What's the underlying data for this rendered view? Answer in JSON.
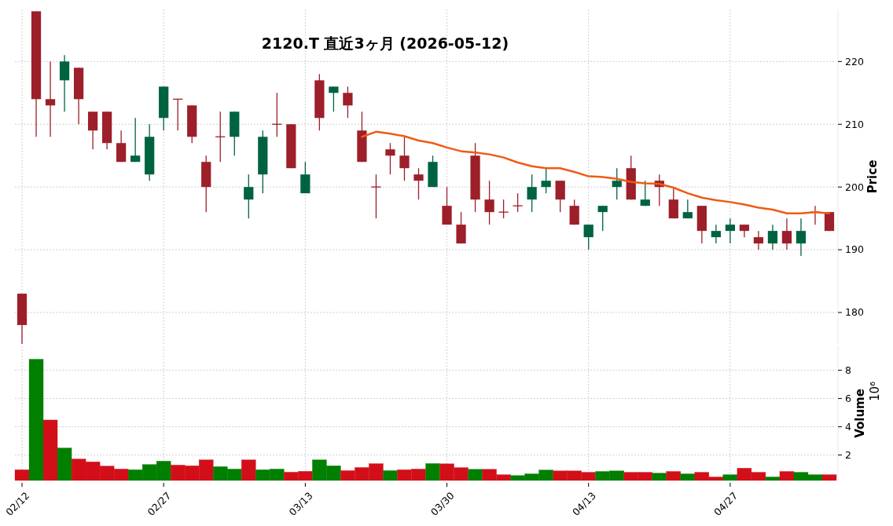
{
  "chart_data": [
    {
      "type": "candlestick",
      "title": "2120.T 直近3ヶ月 (2026-05-12)",
      "ylabel": "Price",
      "categories": [
        null,
        null,
        null,
        null,
        null,
        null,
        null,
        null,
        null,
        null,
        null,
        null,
        null,
        null,
        null,
        null,
        null,
        null,
        null,
        null,
        null,
        null,
        null,
        null,
        null,
        null,
        null,
        null,
        null,
        null,
        null,
        null,
        null,
        null,
        null,
        null,
        null,
        null,
        null,
        null,
        null,
        null,
        null,
        null,
        null,
        null,
        null,
        null,
        null,
        null,
        null,
        null,
        null,
        null,
        null,
        null,
        null,
        null
      ],
      "ohlc": [
        [
          183,
          183,
          175,
          178
        ],
        [
          228,
          228,
          208,
          214
        ],
        [
          214,
          220,
          208,
          213
        ],
        [
          217,
          221,
          212,
          220
        ],
        [
          219,
          219,
          210,
          214
        ],
        [
          212,
          212,
          206,
          209
        ],
        [
          212,
          212,
          206,
          207
        ],
        [
          207,
          209,
          204,
          204
        ],
        [
          204,
          211,
          204,
          205
        ],
        [
          202,
          210,
          201,
          208
        ],
        [
          211,
          216,
          209,
          216
        ],
        [
          214,
          214,
          209,
          214
        ],
        [
          213,
          213,
          207,
          208
        ],
        [
          204,
          205,
          196,
          200
        ],
        [
          208,
          212,
          204,
          208
        ],
        [
          208,
          212,
          205,
          212
        ],
        [
          198,
          202,
          195,
          200
        ],
        [
          202,
          209,
          199,
          208
        ],
        [
          210,
          215,
          208,
          210
        ],
        [
          210,
          210,
          203,
          203
        ],
        [
          199,
          204,
          199,
          202
        ],
        [
          217,
          218,
          209,
          211
        ],
        [
          215,
          216,
          212,
          216
        ],
        [
          215,
          216,
          211,
          213
        ],
        [
          209,
          212,
          204,
          204
        ],
        [
          200,
          202,
          195,
          200
        ],
        [
          206,
          207,
          202,
          205
        ],
        [
          205,
          208,
          201,
          203
        ],
        [
          202,
          203,
          198,
          201
        ],
        [
          200,
          205,
          200,
          204
        ],
        [
          197,
          200,
          194,
          194
        ],
        [
          194,
          196,
          191,
          191
        ],
        [
          205,
          207,
          196,
          198
        ],
        [
          198,
          201,
          194,
          196
        ],
        [
          196,
          198,
          195,
          196
        ],
        [
          197,
          199,
          196,
          197
        ],
        [
          198,
          202,
          196,
          200
        ],
        [
          200,
          203,
          199,
          201
        ],
        [
          201,
          201,
          196,
          198
        ],
        [
          197,
          198,
          194,
          194
        ],
        [
          192,
          194,
          190,
          194
        ],
        [
          196,
          197,
          193,
          197
        ],
        [
          200,
          203,
          198,
          201
        ],
        [
          203,
          205,
          198,
          198
        ],
        [
          197,
          201,
          197,
          198
        ],
        [
          201,
          202,
          197,
          200
        ],
        [
          198,
          200,
          195,
          195
        ],
        [
          195,
          198,
          195,
          196
        ],
        [
          197,
          197,
          191,
          193
        ],
        [
          192,
          194,
          191,
          193
        ],
        [
          193,
          195,
          191,
          194
        ],
        [
          194,
          194,
          192,
          193
        ],
        [
          192,
          193,
          190,
          191
        ],
        [
          191,
          194,
          190,
          193
        ],
        [
          193,
          195,
          190,
          191
        ],
        [
          191,
          195,
          189,
          193
        ],
        [
          196,
          197,
          194,
          196
        ],
        [
          196,
          196,
          193,
          193
        ]
      ],
      "colors": [
        "#9c1f2a",
        "#9c1f2a",
        "#9c1f2a",
        "#006340",
        "#9c1f2a",
        "#9c1f2a",
        "#9c1f2a",
        "#9c1f2a",
        "#006340",
        "#006340",
        "#006340",
        "#9c1f2a",
        "#9c1f2a",
        "#9c1f2a",
        "#9c1f2a",
        "#006340",
        "#006340",
        "#006340",
        "#9c1f2a",
        "#9c1f2a",
        "#006340",
        "#9c1f2a",
        "#006340",
        "#9c1f2a",
        "#9c1f2a",
        "#9c1f2a",
        "#9c1f2a",
        "#9c1f2a",
        "#9c1f2a",
        "#006340",
        "#9c1f2a",
        "#9c1f2a",
        "#9c1f2a",
        "#9c1f2a",
        "#9c1f2a",
        "#9c1f2a",
        "#006340",
        "#006340",
        "#9c1f2a",
        "#9c1f2a",
        "#006340",
        "#006340",
        "#006340",
        "#9c1f2a",
        "#006340",
        "#9c1f2a",
        "#9c1f2a",
        "#006340",
        "#9c1f2a",
        "#006340",
        "#006340",
        "#9c1f2a",
        "#9c1f2a",
        "#006340",
        "#9c1f2a",
        "#006340",
        "#9c1f2a",
        "#9c1f2a"
      ],
      "series": [
        {
          "type": "line",
          "color": "#f05a14",
          "values": [
            null,
            null,
            null,
            null,
            null,
            null,
            null,
            null,
            null,
            null,
            null,
            null,
            null,
            null,
            null,
            null,
            null,
            null,
            null,
            null,
            null,
            null,
            null,
            null,
            208.0,
            208.8,
            208.5,
            208.1,
            207.4,
            207.0,
            206.3,
            205.7,
            205.5,
            205.2,
            204.7,
            203.9,
            203.3,
            203.0,
            203.0,
            202.4,
            201.7,
            201.6,
            201.3,
            200.8,
            200.6,
            200.5,
            199.9,
            199.0,
            198.3,
            197.9,
            197.6,
            197.2,
            196.7,
            196.4,
            195.8,
            195.8,
            196.0,
            195.8
          ]
        }
      ],
      "ylim": [
        175,
        228.3
      ],
      "yticks": [
        180,
        190,
        200,
        210,
        220
      ],
      "grid": true,
      "tick_labels": "y"
    },
    {
      "type": "bar",
      "ylabel": "Volume",
      "annotations": [
        "10⁶"
      ],
      "categories": [
        "02/12",
        null,
        null,
        null,
        null,
        null,
        null,
        null,
        null,
        null,
        "02/27",
        null,
        null,
        null,
        null,
        null,
        null,
        null,
        null,
        null,
        "03/13",
        null,
        null,
        null,
        null,
        null,
        null,
        null,
        null,
        null,
        "03/30",
        null,
        null,
        null,
        null,
        null,
        null,
        null,
        null,
        null,
        "04/13",
        null,
        null,
        null,
        null,
        null,
        null,
        null,
        null,
        null,
        "04/27",
        null,
        null,
        null,
        null,
        null,
        null,
        null
      ],
      "values": [
        0.96,
        8.78,
        4.48,
        2.5,
        1.72,
        1.52,
        1.22,
        1.01,
        0.96,
        1.33,
        1.57,
        1.29,
        1.24,
        1.66,
        1.18,
        1.01,
        1.66,
        0.96,
        1.01,
        0.79,
        0.85,
        1.66,
        1.24,
        0.9,
        1.12,
        1.39,
        0.9,
        0.96,
        1.01,
        1.4,
        1.38,
        1.11,
        0.99,
        0.99,
        0.61,
        0.55,
        0.67,
        0.94,
        0.88,
        0.88,
        0.78,
        0.84,
        0.88,
        0.78,
        0.78,
        0.72,
        0.84,
        0.67,
        0.78,
        0.45,
        0.61,
        1.07,
        0.78,
        0.45,
        0.84,
        0.78,
        0.61,
        0.61
      ],
      "colors": [
        "#d20f19",
        "#007f00",
        "#d20f19",
        "#007f00",
        "#d20f19",
        "#d20f19",
        "#d20f19",
        "#d20f19",
        "#007f00",
        "#007f00",
        "#007f00",
        "#d20f19",
        "#d20f19",
        "#d20f19",
        "#007f00",
        "#007f00",
        "#d20f19",
        "#007f00",
        "#007f00",
        "#d20f19",
        "#d20f19",
        "#007f00",
        "#007f00",
        "#d20f19",
        "#d20f19",
        "#d20f19",
        "#007f00",
        "#d20f19",
        "#d20f19",
        "#007f00",
        "#d20f19",
        "#d20f19",
        "#007f00",
        "#d20f19",
        "#d20f19",
        "#007f00",
        "#007f00",
        "#007f00",
        "#d20f19",
        "#d20f19",
        "#d20f19",
        "#007f00",
        "#007f00",
        "#d20f19",
        "#d20f19",
        "#007f00",
        "#d20f19",
        "#007f00",
        "#d20f19",
        "#d20f19",
        "#007f00",
        "#d20f19",
        "#d20f19",
        "#007f00",
        "#d20f19",
        "#007f00",
        "#007f00",
        "#d20f19"
      ],
      "ylim": [
        0.2,
        9.7
      ],
      "yticks": [
        2,
        4,
        6,
        8
      ],
      "grid": true
    }
  ]
}
